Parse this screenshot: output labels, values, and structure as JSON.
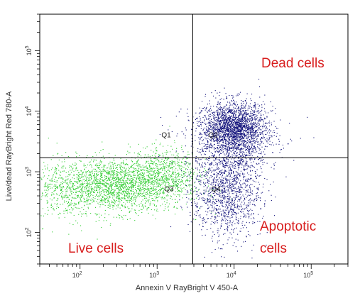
{
  "chart_data": {
    "type": "scatter",
    "xlabel": "Annexin V RayBright V 450-A",
    "ylabel": "Live/dead RayBright Red 780-A",
    "x_scale": "log",
    "y_scale": "log",
    "xlim": [
      30,
      300000
    ],
    "ylim": [
      30,
      400000
    ],
    "x_ticks": [
      {
        "value": 100,
        "base": "10",
        "exp": "2"
      },
      {
        "value": 1000,
        "base": "10",
        "exp": "3"
      },
      {
        "value": 10000,
        "base": "10",
        "exp": "4"
      },
      {
        "value": 100000,
        "base": "10",
        "exp": "5"
      }
    ],
    "y_ticks": [
      {
        "value": 100,
        "base": "10",
        "exp": "2"
      },
      {
        "value": 1000,
        "base": "10",
        "exp": "3"
      },
      {
        "value": 10000,
        "base": "10",
        "exp": "4"
      },
      {
        "value": 100000,
        "base": "10",
        "exp": "5"
      }
    ],
    "gates": {
      "x_threshold": 2900,
      "y_threshold": 1700
    },
    "quadrant_labels": {
      "q1": "Q1",
      "q2": "Q2",
      "q3": "Q3",
      "q4": "Q4"
    },
    "annotations": {
      "dead": "Dead cells",
      "live": "Live cells",
      "apoptotic_line1": "Apoptotic",
      "apoptotic_line2": "cells"
    },
    "series": [
      {
        "color": "#2ecc2e",
        "population": "live",
        "clusters": [
          {
            "x_center": 300,
            "y_center": 600,
            "x_spread_decades": 0.45,
            "y_spread_decades": 0.22,
            "count": 2200
          },
          {
            "x_center": 1200,
            "y_center": 1100,
            "x_spread_decades": 0.22,
            "y_spread_decades": 0.2,
            "count": 500
          },
          {
            "x_center": 60,
            "y_center": 450,
            "x_spread_decades": 0.2,
            "y_spread_decades": 0.25,
            "count": 250
          }
        ]
      },
      {
        "color": "#10107a",
        "population": "dead",
        "clusters": [
          {
            "x_center": 10000,
            "y_center": 5500,
            "x_spread_decades": 0.2,
            "y_spread_decades": 0.2,
            "count": 1800
          },
          {
            "x_center": 9000,
            "y_center": 3500,
            "x_spread_decades": 0.3,
            "y_spread_decades": 0.3,
            "count": 800
          }
        ]
      },
      {
        "color": "#10107a",
        "population": "apoptotic",
        "clusters": [
          {
            "x_center": 8000,
            "y_center": 500,
            "x_spread_decades": 0.22,
            "y_spread_decades": 0.4,
            "count": 1400
          }
        ]
      }
    ]
  }
}
